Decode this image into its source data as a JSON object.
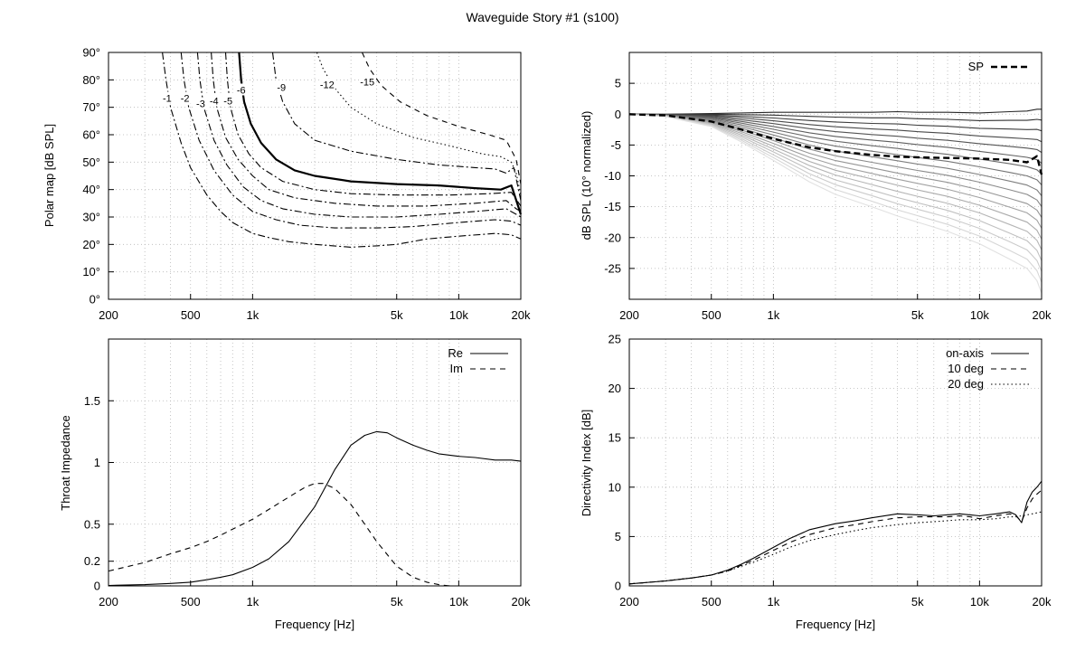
{
  "figure_title": "Waveguide Story #1 (s100)",
  "chart_data": [
    {
      "id": "polar",
      "type": "contour",
      "xlabel": "",
      "ylabel": "Polar map [dB SPL]",
      "x_scale": "log",
      "xlim": [
        200,
        20000
      ],
      "ylim": [
        0,
        90
      ],
      "x_ticks": [
        200,
        500,
        1000,
        5000,
        10000,
        20000
      ],
      "x_tick_labels": [
        "200",
        "500",
        "1k",
        "5k",
        "10k",
        "20k"
      ],
      "y_ticks": [
        0,
        10,
        20,
        30,
        40,
        50,
        60,
        70,
        80,
        90
      ],
      "y_tick_labels": [
        "0°",
        "10°",
        "20°",
        "30°",
        "40°",
        "50°",
        "60°",
        "70°",
        "80°",
        "90°"
      ],
      "grid": true,
      "contours": [
        {
          "level": "-1",
          "style": "dashdot",
          "label_at": [
            385,
            73
          ],
          "points": [
            [
              365,
              90
            ],
            [
              380,
              80
            ],
            [
              400,
              70
            ],
            [
              450,
              57
            ],
            [
              500,
              48
            ],
            [
              600,
              38
            ],
            [
              700,
              32
            ],
            [
              800,
              28
            ],
            [
              1000,
              24
            ],
            [
              1200,
              22.5
            ],
            [
              1500,
              21
            ],
            [
              2000,
              20
            ],
            [
              3000,
              19
            ],
            [
              4000,
              19.5
            ],
            [
              5000,
              20
            ],
            [
              7000,
              22
            ],
            [
              10000,
              23
            ],
            [
              15000,
              24
            ],
            [
              18000,
              23.5
            ],
            [
              20000,
              22
            ]
          ]
        },
        {
          "level": "-2",
          "style": "dashdot",
          "label_at": [
            470,
            73
          ],
          "points": [
            [
              450,
              90
            ],
            [
              465,
              80
            ],
            [
              490,
              70
            ],
            [
              550,
              58
            ],
            [
              650,
              47
            ],
            [
              800,
              38
            ],
            [
              1000,
              32
            ],
            [
              1300,
              29
            ],
            [
              1700,
              27
            ],
            [
              2500,
              26
            ],
            [
              4000,
              26
            ],
            [
              6000,
              26.5
            ],
            [
              10000,
              28
            ],
            [
              15000,
              29
            ],
            [
              18000,
              28.5
            ],
            [
              20000,
              27
            ]
          ]
        },
        {
          "level": "-3",
          "style": "dashdot",
          "label_at": [
            560,
            71
          ],
          "points": [
            [
              540,
              90
            ],
            [
              555,
              80
            ],
            [
              580,
              70
            ],
            [
              650,
              58
            ],
            [
              750,
              49
            ],
            [
              900,
              41
            ],
            [
              1100,
              36
            ],
            [
              1400,
              33
            ],
            [
              2000,
              31
            ],
            [
              3000,
              30
            ],
            [
              5000,
              30
            ],
            [
              8000,
              31
            ],
            [
              12000,
              32
            ],
            [
              17000,
              33
            ],
            [
              19000,
              31
            ],
            [
              20000,
              30
            ]
          ]
        },
        {
          "level": "-4",
          "style": "dashdot",
          "label_at": [
            650,
            72
          ],
          "points": [
            [
              630,
              90
            ],
            [
              645,
              80
            ],
            [
              670,
              70
            ],
            [
              740,
              59
            ],
            [
              850,
              51
            ],
            [
              1000,
              45
            ],
            [
              1200,
              40
            ],
            [
              1600,
              37
            ],
            [
              2500,
              35
            ],
            [
              4000,
              34
            ],
            [
              7000,
              34
            ],
            [
              12000,
              35
            ],
            [
              17000,
              36
            ],
            [
              19000,
              33
            ],
            [
              20000,
              32
            ]
          ]
        },
        {
          "level": "-5",
          "style": "dashdot",
          "label_at": [
            760,
            72
          ],
          "points": [
            [
              740,
              90
            ],
            [
              755,
              80
            ],
            [
              780,
              70
            ],
            [
              850,
              60
            ],
            [
              960,
              53
            ],
            [
              1100,
              48
            ],
            [
              1400,
              43
            ],
            [
              2000,
              40
            ],
            [
              3000,
              38.5
            ],
            [
              5000,
              38
            ],
            [
              9000,
              38
            ],
            [
              14000,
              38.5
            ],
            [
              18000,
              39
            ],
            [
              20000,
              34
            ]
          ]
        },
        {
          "level": "-6",
          "style": "bold",
          "label_at": [
            880,
            76
          ],
          "points": [
            [
              860,
              90
            ],
            [
              880,
              80
            ],
            [
              910,
              72
            ],
            [
              980,
              64
            ],
            [
              1100,
              57
            ],
            [
              1300,
              51
            ],
            [
              1600,
              47
            ],
            [
              2000,
              45
            ],
            [
              3000,
              43
            ],
            [
              5000,
              42
            ],
            [
              8000,
              41.5
            ],
            [
              12000,
              40.5
            ],
            [
              16000,
              40
            ],
            [
              18000,
              41.5
            ],
            [
              20000,
              31
            ]
          ]
        },
        {
          "level": "-9",
          "style": "dashdot",
          "label_at": [
            1380,
            77
          ],
          "points": [
            [
              1250,
              90
            ],
            [
              1300,
              80
            ],
            [
              1400,
              72
            ],
            [
              1600,
              64
            ],
            [
              2000,
              58
            ],
            [
              3000,
              54
            ],
            [
              5000,
              51
            ],
            [
              8000,
              49
            ],
            [
              12000,
              48
            ],
            [
              15000,
              47.5
            ],
            [
              17000,
              46
            ],
            [
              18500,
              48
            ],
            [
              20000,
              36
            ]
          ]
        },
        {
          "level": "-12",
          "style": "dotted",
          "label_at": [
            2300,
            78
          ],
          "points": [
            [
              2050,
              90
            ],
            [
              2200,
              84
            ],
            [
              2500,
              77
            ],
            [
              3000,
              70
            ],
            [
              4000,
              64
            ],
            [
              6000,
              59
            ],
            [
              9000,
              56
            ],
            [
              13000,
              53
            ],
            [
              16000,
              52
            ],
            [
              18000,
              50
            ],
            [
              19000,
              46
            ],
            [
              20000,
              38
            ]
          ]
        },
        {
          "level": "-15",
          "style": "dashed",
          "label_at": [
            3600,
            79
          ],
          "points": [
            [
              3400,
              90
            ],
            [
              3700,
              84
            ],
            [
              4200,
              78
            ],
            [
              5200,
              72
            ],
            [
              7000,
              67
            ],
            [
              10000,
              63
            ],
            [
              14000,
              60
            ],
            [
              17000,
              58
            ],
            [
              19000,
              51
            ],
            [
              20000,
              42
            ]
          ]
        }
      ]
    },
    {
      "id": "spl",
      "type": "line",
      "xlabel": "",
      "ylabel": "dB SPL (10° normalized)",
      "x_scale": "log",
      "xlim": [
        200,
        20000
      ],
      "ylim": [
        -30,
        10
      ],
      "x_ticks": [
        200,
        500,
        1000,
        5000,
        10000,
        20000
      ],
      "x_tick_labels": [
        "200",
        "500",
        "1k",
        "5k",
        "10k",
        "20k"
      ],
      "y_ticks": [
        -25,
        -20,
        -15,
        -10,
        -5,
        0,
        5
      ],
      "y_tick_labels": [
        "-25",
        "-20",
        "-15",
        "-10",
        "-5",
        "0",
        "5"
      ],
      "grid": true,
      "legend": "top-right",
      "x_points": [
        200,
        300,
        500,
        700,
        1000,
        1500,
        2000,
        3000,
        4000,
        5000,
        7000,
        10000,
        14000,
        17000,
        19000,
        20000
      ],
      "fan_upper": [
        0,
        0,
        0.1,
        0.2,
        0.3,
        0.3,
        0.3,
        0.3,
        0.4,
        0.3,
        0.3,
        0.2,
        0.4,
        0.5,
        0.8,
        0.8
      ],
      "fan_lower": [
        -0.1,
        -0.4,
        -2,
        -4.5,
        -7.5,
        -11,
        -13,
        -15,
        -16.5,
        -17.5,
        -19,
        -21,
        -23.5,
        -25,
        -27,
        -29
      ],
      "fan_count": 18,
      "series": [
        {
          "name": "SP",
          "style": "bold-dashed",
          "values": [
            0,
            -0.2,
            -1.2,
            -2.5,
            -4.0,
            -5.4,
            -6.0,
            -6.6,
            -6.9,
            -7.0,
            -7.1,
            -7.2,
            -7.4,
            -7.8,
            -6.8,
            -9.8
          ]
        }
      ]
    },
    {
      "id": "impedance",
      "type": "line",
      "xlabel": "Frequency [Hz]",
      "ylabel": "Throat Impedance",
      "x_scale": "log",
      "xlim": [
        200,
        20000
      ],
      "ylim": [
        0,
        2
      ],
      "x_ticks": [
        200,
        500,
        1000,
        5000,
        10000,
        20000
      ],
      "x_tick_labels": [
        "200",
        "500",
        "1k",
        "5k",
        "10k",
        "20k"
      ],
      "y_ticks": [
        0,
        0.2,
        0.5,
        1,
        1.5
      ],
      "y_tick_labels": [
        "0",
        "0.2",
        "0.5",
        "1",
        "1.5"
      ],
      "grid": true,
      "legend": "top-right",
      "series": [
        {
          "name": "Re",
          "style": "solid",
          "x": [
            200,
            300,
            400,
            500,
            600,
            700,
            800,
            1000,
            1200,
            1500,
            2000,
            2500,
            3000,
            3500,
            4000,
            4500,
            5000,
            6000,
            7000,
            8000,
            10000,
            12000,
            15000,
            18000,
            20000
          ],
          "values": [
            0.004,
            0.01,
            0.02,
            0.03,
            0.05,
            0.07,
            0.09,
            0.15,
            0.22,
            0.36,
            0.64,
            0.94,
            1.14,
            1.22,
            1.25,
            1.24,
            1.2,
            1.14,
            1.1,
            1.07,
            1.05,
            1.04,
            1.02,
            1.02,
            1.01
          ]
        },
        {
          "name": "Im",
          "style": "dashed",
          "x": [
            200,
            300,
            400,
            500,
            600,
            700,
            800,
            1000,
            1200,
            1500,
            1800,
            2000,
            2200,
            2500,
            3000,
            3500,
            4000,
            5000,
            6000,
            7000,
            8000,
            9000
          ],
          "values": [
            0.12,
            0.19,
            0.26,
            0.31,
            0.36,
            0.41,
            0.46,
            0.54,
            0.62,
            0.72,
            0.8,
            0.83,
            0.83,
            0.79,
            0.66,
            0.5,
            0.36,
            0.16,
            0.07,
            0.03,
            0.01,
            0.0
          ]
        }
      ]
    },
    {
      "id": "di",
      "type": "line",
      "xlabel": "Frequency [Hz]",
      "ylabel": "Directivity Index [dB]",
      "x_scale": "log",
      "xlim": [
        200,
        20000
      ],
      "ylim": [
        0,
        25
      ],
      "x_ticks": [
        200,
        500,
        1000,
        5000,
        10000,
        20000
      ],
      "x_tick_labels": [
        "200",
        "500",
        "1k",
        "5k",
        "10k",
        "20k"
      ],
      "y_ticks": [
        0,
        5,
        10,
        15,
        20,
        25
      ],
      "y_tick_labels": [
        "0",
        "5",
        "10",
        "15",
        "20",
        "25"
      ],
      "grid": true,
      "legend": "top-right",
      "x": [
        200,
        300,
        400,
        500,
        600,
        700,
        800,
        1000,
        1200,
        1500,
        2000,
        2500,
        3000,
        4000,
        5000,
        6000,
        7000,
        8000,
        9000,
        10000,
        12000,
        14000,
        15000,
        16000,
        17000,
        18000,
        19000,
        20000
      ],
      "series": [
        {
          "name": "on-axis",
          "style": "solid",
          "values": [
            0.2,
            0.5,
            0.8,
            1.1,
            1.6,
            2.2,
            2.8,
            3.9,
            4.8,
            5.7,
            6.3,
            6.6,
            6.9,
            7.3,
            7.2,
            7.1,
            7.2,
            7.3,
            7.2,
            7.1,
            7.3,
            7.5,
            7.2,
            6.4,
            8.5,
            9.5,
            10.0,
            10.6
          ]
        },
        {
          "name": "10 deg",
          "style": "dashed",
          "values": [
            0.2,
            0.5,
            0.8,
            1.1,
            1.5,
            2.1,
            2.6,
            3.6,
            4.4,
            5.2,
            5.9,
            6.2,
            6.5,
            6.9,
            7.0,
            7.0,
            7.0,
            7.1,
            7.0,
            6.8,
            7.1,
            7.3,
            7.1,
            6.5,
            7.9,
            8.8,
            9.3,
            9.7
          ]
        },
        {
          "name": "20 deg",
          "style": "dotted",
          "values": [
            0.2,
            0.5,
            0.8,
            1.1,
            1.5,
            2.0,
            2.4,
            3.2,
            3.9,
            4.6,
            5.2,
            5.6,
            5.9,
            6.2,
            6.4,
            6.5,
            6.6,
            6.7,
            6.7,
            6.7,
            6.8,
            7.0,
            7.0,
            7.1,
            7.2,
            7.3,
            7.4,
            7.5
          ]
        }
      ]
    }
  ]
}
